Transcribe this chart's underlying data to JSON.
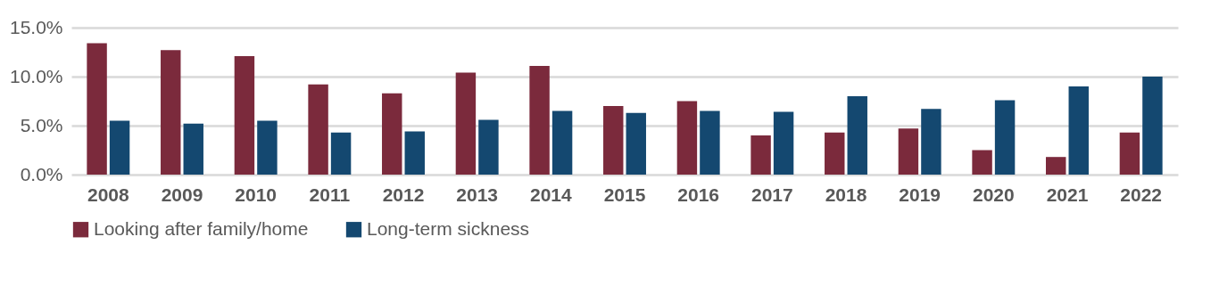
{
  "chart_data": {
    "type": "bar",
    "categories": [
      "2008",
      "2009",
      "2010",
      "2011",
      "2012",
      "2013",
      "2014",
      "2015",
      "2016",
      "2017",
      "2018",
      "2019",
      "2020",
      "2021",
      "2022"
    ],
    "series": [
      {
        "name": "Looking after family/home",
        "color": "#7b2a3c",
        "values": [
          13.4,
          12.7,
          12.1,
          9.2,
          8.3,
          10.4,
          11.1,
          7.0,
          7.5,
          4.0,
          4.3,
          4.7,
          2.5,
          1.8,
          4.3
        ]
      },
      {
        "name": "Long-term sickness",
        "color": "#144870",
        "values": [
          5.5,
          5.2,
          5.5,
          4.3,
          4.4,
          5.6,
          6.5,
          6.3,
          6.5,
          6.4,
          8.0,
          6.7,
          7.6,
          9.0,
          10.0
        ]
      }
    ],
    "ylim": [
      0,
      15
    ],
    "yticks": [
      {
        "value": 0,
        "label": "0.0%"
      },
      {
        "value": 5,
        "label": "5.0%"
      },
      {
        "value": 10,
        "label": "10.0%"
      },
      {
        "value": 15,
        "label": "15.0%"
      }
    ],
    "grid": "y",
    "legend": "bottom"
  }
}
